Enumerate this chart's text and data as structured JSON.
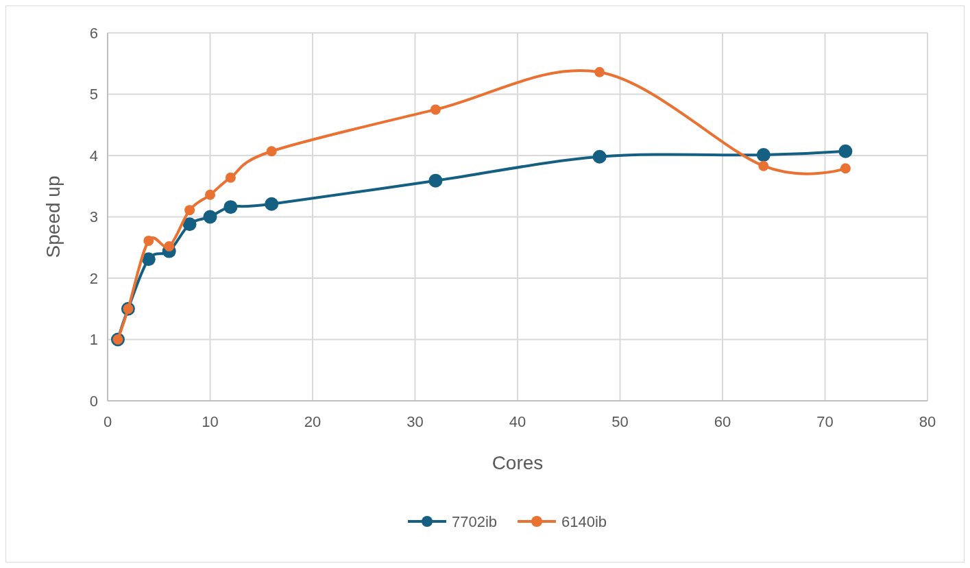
{
  "chart_data": {
    "type": "line",
    "xlabel": "Cores",
    "ylabel": "Speed up",
    "xlim": [
      0,
      80
    ],
    "xticks": [
      0,
      10,
      20,
      30,
      40,
      50,
      60,
      70,
      80
    ],
    "ylim": [
      0,
      6
    ],
    "yticks": [
      0,
      1,
      2,
      3,
      4,
      5,
      6
    ],
    "grid": true,
    "legend": "bottom",
    "marker": "circle",
    "line_style": "solid",
    "series": [
      {
        "name": "7702ib",
        "color": "#156082",
        "x": [
          1,
          2,
          4,
          6,
          8,
          10,
          12,
          16,
          32,
          48,
          64,
          72
        ],
        "values": [
          1,
          1.5,
          2.31,
          2.44,
          2.88,
          3.0,
          3.16,
          3.21,
          3.59,
          3.98,
          4.01,
          4.07
        ]
      },
      {
        "name": "6140ib",
        "color": "#e97132",
        "x": [
          1,
          2,
          4,
          6,
          8,
          10,
          12,
          16,
          32,
          48,
          64,
          72
        ],
        "values": [
          1,
          1.5,
          2.61,
          2.52,
          3.11,
          3.36,
          3.64,
          4.07,
          4.75,
          5.36,
          3.83,
          3.79
        ]
      }
    ]
  }
}
